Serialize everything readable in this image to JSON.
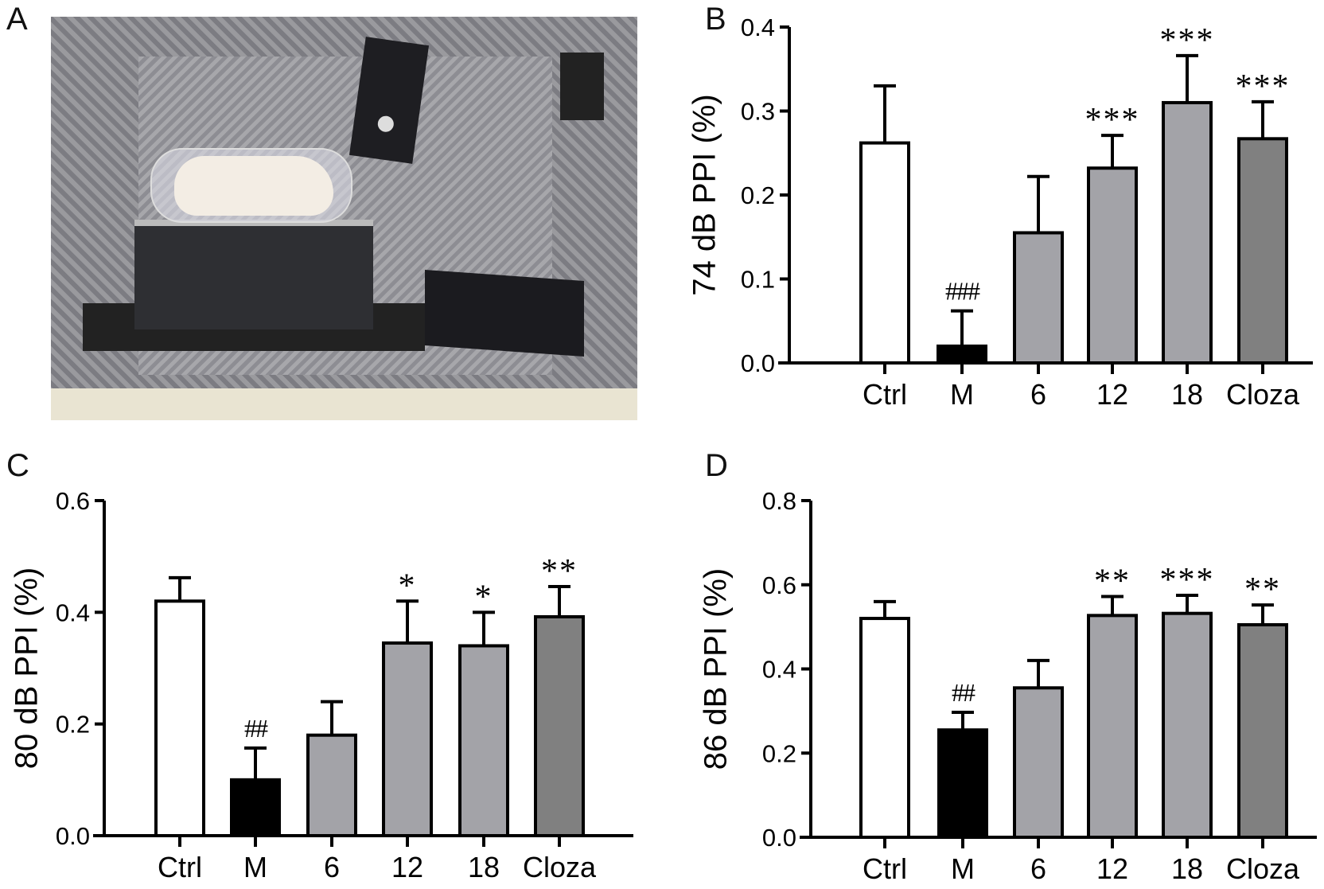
{
  "panels": {
    "a": "A",
    "b": "B",
    "c": "C",
    "d": "D"
  },
  "colors": {
    "Ctrl": "#ffffff",
    "M": "#000000",
    "6": "#a3a3a8",
    "12": "#a3a3a8",
    "18": "#a3a3a8",
    "Cloza": "#808080"
  },
  "chart_data": [
    {
      "type": "bar",
      "panel": "B",
      "ylabel": "74 dB PPI (%)",
      "ylim": [
        0,
        0.4
      ],
      "yticks": [
        "0.0",
        "0.1",
        "0.2",
        "0.3",
        "0.4"
      ],
      "categories": [
        "Ctrl",
        "M",
        "6",
        "12",
        "18",
        "Cloza"
      ],
      "values": [
        0.262,
        0.02,
        0.155,
        0.232,
        0.31,
        0.267
      ],
      "error_upper": [
        0.33,
        0.062,
        0.222,
        0.271,
        0.366,
        0.311
      ],
      "annotations": [
        "",
        "###",
        "",
        "***",
        "***",
        "***"
      ]
    },
    {
      "type": "bar",
      "panel": "C",
      "ylabel": "80 dB PPI (%)",
      "ylim": [
        0,
        0.6
      ],
      "yticks": [
        "0.0",
        "0.2",
        "0.4",
        "0.6"
      ],
      "categories": [
        "Ctrl",
        "M",
        "6",
        "12",
        "18",
        "Cloza"
      ],
      "values": [
        0.42,
        0.1,
        0.18,
        0.345,
        0.34,
        0.392
      ],
      "error_upper": [
        0.462,
        0.157,
        0.24,
        0.42,
        0.4,
        0.446
      ],
      "annotations": [
        "",
        "##",
        "",
        "*",
        "*",
        "**"
      ]
    },
    {
      "type": "bar",
      "panel": "D",
      "ylabel": "86 dB PPI (%)",
      "ylim": [
        0,
        0.8
      ],
      "yticks": [
        "0.0",
        "0.2",
        "0.4",
        "0.6",
        "0.8"
      ],
      "categories": [
        "Ctrl",
        "M",
        "6",
        "12",
        "18",
        "Cloza"
      ],
      "values": [
        0.52,
        0.255,
        0.355,
        0.527,
        0.532,
        0.505
      ],
      "error_upper": [
        0.56,
        0.297,
        0.42,
        0.572,
        0.575,
        0.552
      ],
      "annotations": [
        "",
        "##",
        "",
        "**",
        "***",
        "**"
      ]
    }
  ]
}
